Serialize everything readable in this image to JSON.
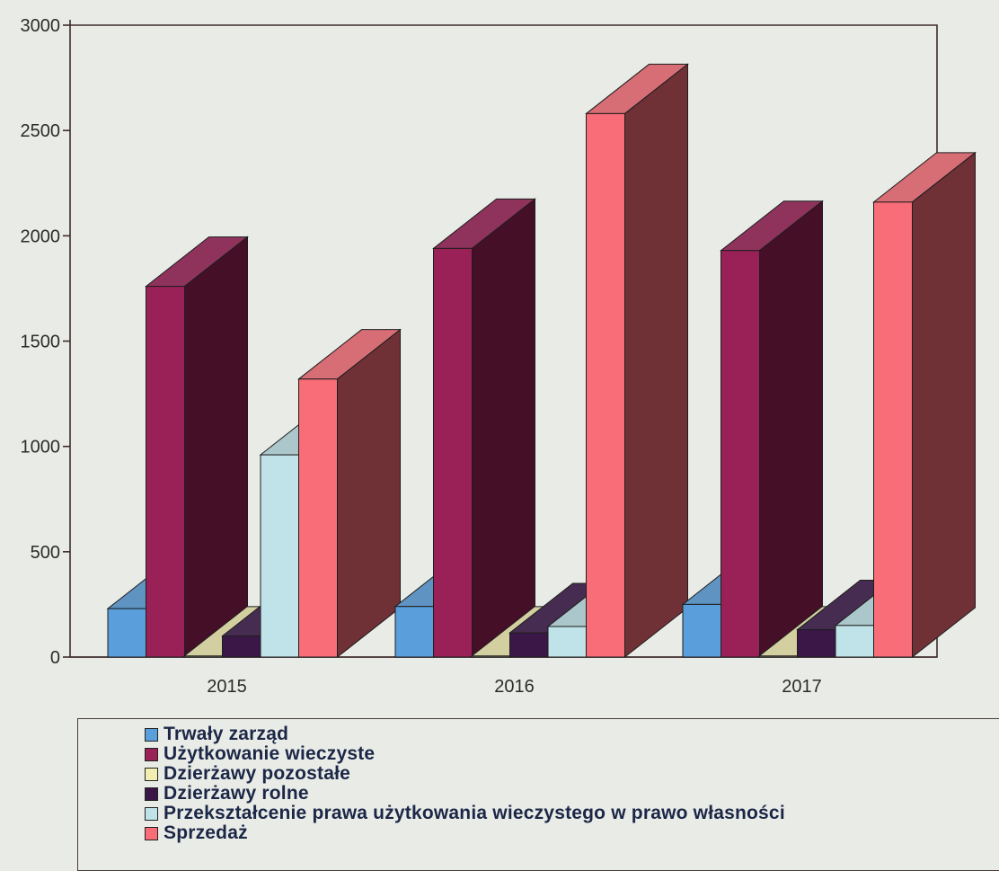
{
  "chart_data": {
    "type": "bar",
    "categories": [
      "2015",
      "2016",
      "2017"
    ],
    "ylim": [
      0,
      3000
    ],
    "yticks": [
      0,
      500,
      1000,
      1500,
      2000,
      2500,
      3000
    ],
    "legend_position": "bottom",
    "series": [
      {
        "name": "Trwały zarząd",
        "color": "#5a9fdc",
        "values": [
          230,
          240,
          250
        ]
      },
      {
        "name": "Użytkowanie wieczyste",
        "color": "#9a2158",
        "values": [
          1760,
          1940,
          1930
        ]
      },
      {
        "name": "Dzierżawy pozostałe",
        "color": "#f2eeb2",
        "values": [
          5,
          5,
          5
        ]
      },
      {
        "name": "Dzierżawy rolne",
        "color": "#3a1747",
        "values": [
          100,
          115,
          130
        ]
      },
      {
        "name": "Przekształcenie prawa użytkowania wieczystego w prawo własności",
        "color": "#bfe3e8",
        "values": [
          960,
          145,
          150
        ]
      },
      {
        "name": "Sprzedaż",
        "color": "#f86d78",
        "values": [
          1320,
          2580,
          2160
        ]
      }
    ]
  }
}
